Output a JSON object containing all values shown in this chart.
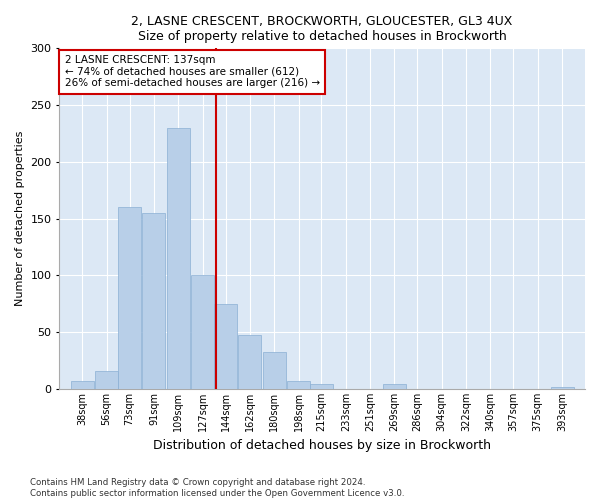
{
  "title1": "2, LASNE CRESCENT, BROCKWORTH, GLOUCESTER, GL3 4UX",
  "title2": "Size of property relative to detached houses in Brockworth",
  "xlabel": "Distribution of detached houses by size in Brockworth",
  "ylabel": "Number of detached properties",
  "categories": [
    "38sqm",
    "56sqm",
    "73sqm",
    "91sqm",
    "109sqm",
    "127sqm",
    "144sqm",
    "162sqm",
    "180sqm",
    "198sqm",
    "215sqm",
    "233sqm",
    "251sqm",
    "269sqm",
    "286sqm",
    "304sqm",
    "322sqm",
    "340sqm",
    "357sqm",
    "375sqm",
    "393sqm"
  ],
  "values": [
    7,
    16,
    160,
    155,
    230,
    100,
    75,
    48,
    33,
    7,
    4,
    0,
    0,
    4,
    0,
    0,
    0,
    0,
    0,
    0,
    2
  ],
  "bar_color": "#b8cfe8",
  "bar_edge_color": "#8aafd4",
  "annotation_line1": "2 LASNE CRESCENT: 137sqm",
  "annotation_line2": "← 74% of detached houses are smaller (612)",
  "annotation_line3": "26% of semi-detached houses are larger (216) →",
  "annotation_box_facecolor": "#ffffff",
  "annotation_box_edgecolor": "#cc0000",
  "vline_color": "#cc0000",
  "ylim": [
    0,
    300
  ],
  "yticks": [
    0,
    50,
    100,
    150,
    200,
    250,
    300
  ],
  "background_color": "#dce8f5",
  "footer1": "Contains HM Land Registry data © Crown copyright and database right 2024.",
  "footer2": "Contains public sector information licensed under the Open Government Licence v3.0."
}
